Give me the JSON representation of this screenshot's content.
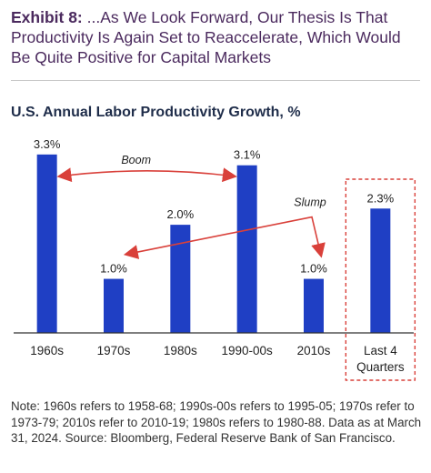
{
  "header": {
    "exhibit_label": "Exhibit 8:",
    "exhibit_title": "...As We Look Forward, Our Thesis Is That Productivity Is Again Set to Reaccelerate, Which Would Be Quite Positive for Capital Markets"
  },
  "chart_data": {
    "type": "bar",
    "title": "U.S. Annual Labor Productivity Growth, %",
    "categories": [
      "1960s",
      "1970s",
      "1980s",
      "1990-00s",
      "2010s",
      "Last 4 Quarters"
    ],
    "values": [
      3.3,
      1.0,
      2.0,
      3.1,
      1.0,
      2.3
    ],
    "value_labels": [
      "3.3%",
      "1.0%",
      "2.0%",
      "3.1%",
      "1.0%",
      "2.3%"
    ],
    "ylim": [
      0,
      3.6
    ],
    "grid": false,
    "annotations": [
      {
        "text": "Boom",
        "from": "1960s",
        "to": "1990-00s",
        "style": "double-arrow"
      },
      {
        "text": "Slump",
        "from": "1970s",
        "to": "2010s",
        "style": "double-arrow"
      }
    ],
    "highlight": {
      "category": "Last 4 Quarters",
      "style": "dashed-box"
    },
    "colors": {
      "bar": "#1f3fc4",
      "arrow": "#d9403a",
      "highlight_box": "#d9403a",
      "axis": "#333333"
    }
  },
  "note": {
    "line1": "Note: 1960s refers to 1958-68; 1990s-00s refers to 1995-05; 1970s refer to 1973-79; 2010s refer to 2010-19; 1980s refers to 1980-88.",
    "line2": "Data as at March 31, 2024. Source: Bloomberg, Federal Reserve Bank of San Francisco."
  }
}
